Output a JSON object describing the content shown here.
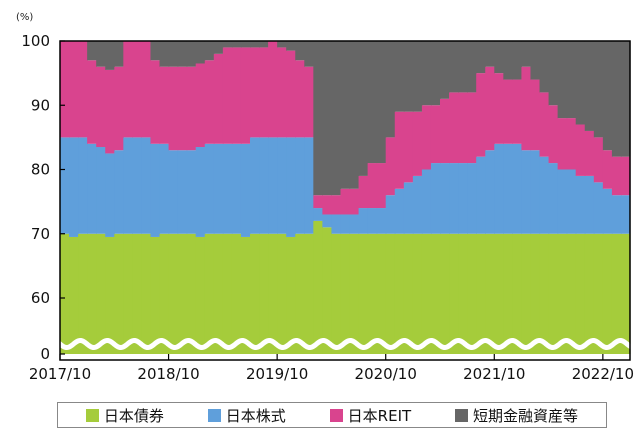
{
  "chart_data": {
    "type": "area",
    "stacked": true,
    "unit_label": "(%)",
    "y_axis_break": true,
    "ylim": [
      0,
      100
    ],
    "y_ticks": [
      "0",
      "60",
      "70",
      "80",
      "90",
      "100"
    ],
    "x_tick_labels": [
      "2017/10",
      "2018/10",
      "2019/10",
      "2020/10",
      "2021/10",
      "2022/10"
    ],
    "x": [
      "2017/10",
      "2017/11",
      "2017/12",
      "2018/01",
      "2018/02",
      "2018/03",
      "2018/04",
      "2018/05",
      "2018/06",
      "2018/07",
      "2018/08",
      "2018/09",
      "2018/10",
      "2018/11",
      "2018/12",
      "2019/01",
      "2019/02",
      "2019/03",
      "2019/04",
      "2019/05",
      "2019/06",
      "2019/07",
      "2019/08",
      "2019/09",
      "2019/10",
      "2019/11",
      "2019/12",
      "2020/01",
      "2020/02",
      "2020/03",
      "2020/04",
      "2020/05",
      "2020/06",
      "2020/07",
      "2020/08",
      "2020/09",
      "2020/10",
      "2020/11",
      "2020/12",
      "2021/01",
      "2021/02",
      "2021/03",
      "2021/04",
      "2021/05",
      "2021/06",
      "2021/07",
      "2021/08",
      "2021/09",
      "2021/10",
      "2021/11",
      "2021/12",
      "2022/01",
      "2022/02",
      "2022/03",
      "2022/04",
      "2022/05",
      "2022/06",
      "2022/07",
      "2022/08",
      "2022/09",
      "2022/10",
      "2022/11",
      "2022/12"
    ],
    "series": [
      {
        "name": "日本債券",
        "color": "#a5cc3b",
        "values": [
          70,
          69.5,
          70,
          70,
          70,
          69.5,
          70,
          70,
          70,
          70,
          69.5,
          70,
          70,
          70,
          70,
          69.5,
          70,
          70,
          70,
          70,
          69.5,
          70,
          70,
          70,
          70,
          69.5,
          70,
          70,
          72,
          71,
          70,
          70,
          70,
          70,
          70,
          70,
          70,
          70,
          70,
          70,
          70,
          70,
          70,
          70,
          70,
          70,
          70,
          70,
          70,
          70,
          70,
          70,
          70,
          70,
          70,
          70,
          70,
          70,
          70,
          70,
          70,
          70,
          70
        ]
      },
      {
        "name": "日本株式",
        "color": "#5f9fdb",
        "values": [
          15,
          15.5,
          15,
          14,
          13.5,
          13,
          13,
          15,
          15,
          15,
          14.5,
          14,
          13,
          13,
          13,
          14,
          14,
          14,
          14,
          14,
          14.5,
          15,
          15,
          15,
          15,
          15.5,
          15,
          15,
          2,
          2,
          3,
          3,
          3,
          4,
          4,
          4,
          6,
          7,
          8,
          9,
          10,
          11,
          11,
          11,
          11,
          11,
          12,
          13,
          14,
          14,
          14,
          13,
          13,
          12,
          11,
          10,
          10,
          9,
          9,
          8,
          7,
          6,
          6
        ]
      },
      {
        "name": "日本REIT",
        "color": "#d9448e",
        "values": [
          15,
          15,
          15,
          13,
          12.5,
          13,
          13,
          15,
          15,
          15,
          13,
          12,
          13,
          13,
          13,
          13,
          13,
          14,
          15,
          15,
          15,
          14,
          14,
          15,
          14,
          13.5,
          12,
          11,
          2,
          3,
          3,
          4,
          4,
          5,
          7,
          7,
          9,
          12,
          11,
          10,
          10,
          9,
          10,
          11,
          11,
          11,
          13,
          13,
          11,
          10,
          10,
          13,
          11,
          10,
          9,
          8,
          8,
          8,
          7,
          7,
          6,
          6,
          6
        ]
      },
      {
        "name": "短期金融資産等",
        "color": "#666666",
        "values": [
          0,
          0,
          0,
          3,
          4,
          4.5,
          4,
          0,
          0,
          0,
          3,
          4,
          4,
          4,
          4,
          3.5,
          3,
          2,
          1,
          1,
          1,
          1,
          1,
          0,
          1,
          1.5,
          3,
          4,
          24,
          24,
          24,
          23,
          23,
          21,
          19,
          19,
          15,
          11,
          11,
          11,
          10,
          10,
          9,
          8,
          8,
          8,
          5,
          4,
          5,
          6,
          6,
          4,
          6,
          8,
          10,
          12,
          12,
          13,
          14,
          15,
          17,
          18,
          18
        ]
      }
    ],
    "grid": false,
    "legend_position": "bottom"
  }
}
